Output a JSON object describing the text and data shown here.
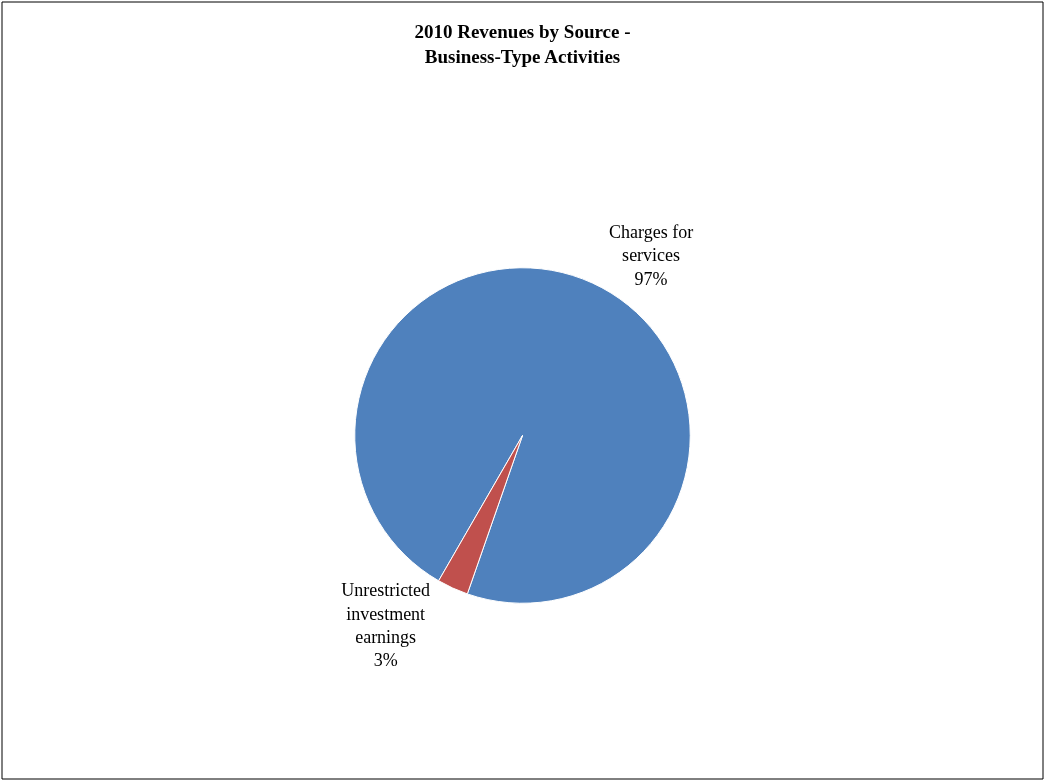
{
  "chart_data": {
    "type": "pie",
    "title": "2010 Revenues by Source -\nBusiness-Type Activities",
    "categories": [
      "Charges for services",
      "Unrestricted investment earnings"
    ],
    "values": [
      97,
      3
    ],
    "colors": [
      "#4f81bd",
      "#c0504d"
    ],
    "value_labels": [
      "97%",
      "3%"
    ],
    "legend": false
  }
}
